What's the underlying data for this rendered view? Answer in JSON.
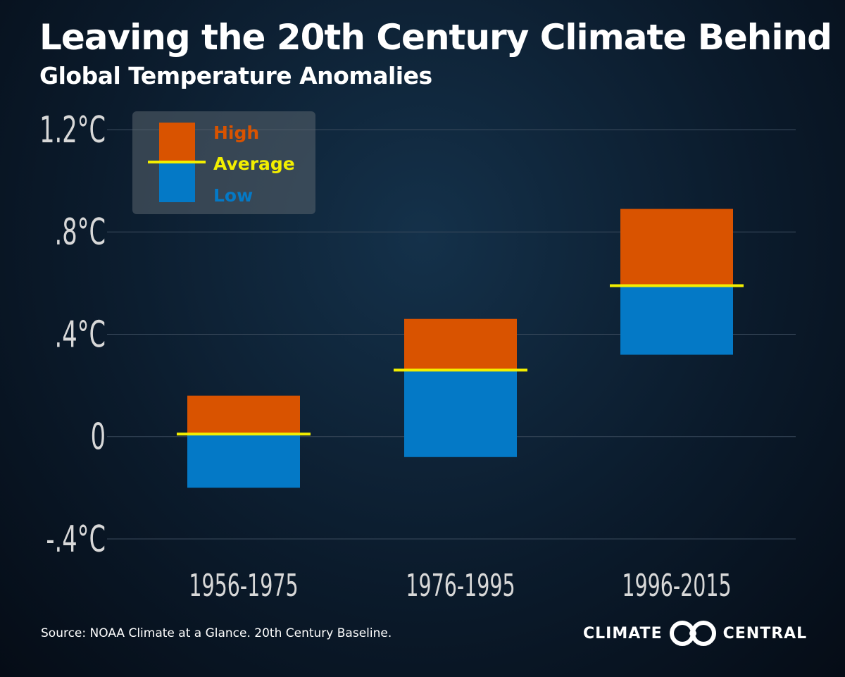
{
  "title": "Leaving the 20th Century Climate Behind",
  "subtitle": "Global Temperature Anomalies",
  "source": "Source: NOAA Climate at a Glance. 20th Century Baseline.",
  "brand": {
    "word1": "CLIMATE",
    "word2": "CENTRAL"
  },
  "colors": {
    "high": "#d95300",
    "low": "#0479c6",
    "average": "#f2ee00",
    "axis_text": "#d8d8d8",
    "grid": "#3a4a5c"
  },
  "chart_data": {
    "type": "bar",
    "categories": [
      "1956-1975",
      "1976-1995",
      "1996-2015"
    ],
    "series": [
      {
        "name": "High",
        "values": [
          0.16,
          0.46,
          0.89
        ]
      },
      {
        "name": "Average",
        "values": [
          0.01,
          0.26,
          0.59
        ]
      },
      {
        "name": "Low",
        "values": [
          -0.2,
          -0.08,
          0.32
        ]
      }
    ],
    "ylim": [
      -0.4,
      1.2
    ],
    "yticks": [
      -0.4,
      0,
      0.4,
      0.8,
      1.2
    ],
    "ytick_labels": [
      "-.4°C",
      "0",
      ".4°C",
      ".8°C",
      "1.2°C"
    ],
    "legend": [
      "High",
      "Average",
      "Low"
    ],
    "legend_position": "top-left",
    "grid": true
  }
}
